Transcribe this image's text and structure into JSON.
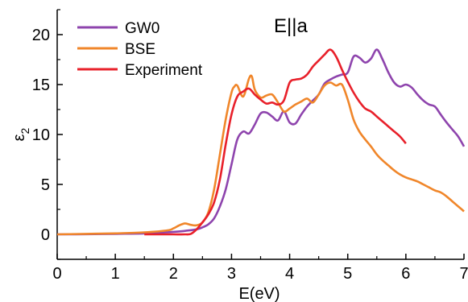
{
  "chart_data": {
    "type": "line",
    "title": "E||a",
    "xlabel": "E(eV)",
    "ylabel": "ε2",
    "ylabel_main": "ε",
    "ylabel_sub": "2",
    "xlim": [
      0,
      7
    ],
    "ylim": [
      -2.5,
      22.5
    ],
    "xticks": [
      0,
      1,
      2,
      3,
      4,
      5,
      6,
      7
    ],
    "yticks": [
      0,
      5,
      10,
      15,
      20
    ],
    "grid": false,
    "legend_position": "top-left",
    "series": [
      {
        "name": "GW0",
        "color": "#8e44ad",
        "x": [
          0,
          0.5,
          1,
          1.5,
          2,
          2.2,
          2.4,
          2.5,
          2.6,
          2.7,
          2.8,
          2.9,
          3.0,
          3.1,
          3.2,
          3.3,
          3.4,
          3.5,
          3.6,
          3.7,
          3.8,
          3.9,
          4.0,
          4.1,
          4.2,
          4.3,
          4.4,
          4.5,
          4.6,
          4.7,
          4.8,
          4.9,
          5.0,
          5.1,
          5.2,
          5.3,
          5.4,
          5.5,
          5.6,
          5.7,
          5.8,
          5.9,
          6.0,
          6.1,
          6.2,
          6.3,
          6.4,
          6.5,
          6.6,
          6.7,
          6.8,
          6.9,
          7.0
        ],
        "y": [
          0,
          0.02,
          0.05,
          0.1,
          0.25,
          0.35,
          0.5,
          0.7,
          1.0,
          1.6,
          2.8,
          4.5,
          7.0,
          9.5,
          10.3,
          10.1,
          11.0,
          12.1,
          12.2,
          11.8,
          11.4,
          12.3,
          11.2,
          11.1,
          12.0,
          12.8,
          13.4,
          14.0,
          15.1,
          15.5,
          15.8,
          16.0,
          16.2,
          17.8,
          17.7,
          17.2,
          17.6,
          18.5,
          17.5,
          16.2,
          15.2,
          14.8,
          15.0,
          14.7,
          14.0,
          13.4,
          13.0,
          12.8,
          12.0,
          11.2,
          10.5,
          9.8,
          8.8
        ]
      },
      {
        "name": "BSE",
        "color": "#f0862a",
        "x": [
          0,
          0.5,
          1,
          1.5,
          1.9,
          2.0,
          2.1,
          2.2,
          2.3,
          2.4,
          2.5,
          2.6,
          2.7,
          2.8,
          2.9,
          3.0,
          3.05,
          3.1,
          3.2,
          3.3,
          3.35,
          3.4,
          3.5,
          3.6,
          3.7,
          3.8,
          3.9,
          4.0,
          4.1,
          4.2,
          4.3,
          4.4,
          4.5,
          4.6,
          4.7,
          4.8,
          4.9,
          5.0,
          5.1,
          5.2,
          5.3,
          5.4,
          5.5,
          5.6,
          5.7,
          5.8,
          5.9,
          6.0,
          6.1,
          6.2,
          6.3,
          6.4,
          6.5,
          6.6,
          6.7,
          6.8,
          6.9,
          7.0
        ],
        "y": [
          0,
          0.05,
          0.1,
          0.2,
          0.4,
          0.6,
          0.9,
          1.1,
          0.95,
          0.9,
          1.2,
          2.2,
          4.5,
          8.0,
          11.5,
          14.2,
          14.8,
          14.9,
          13.8,
          15.6,
          15.8,
          14.5,
          13.7,
          13.9,
          14.0,
          13.2,
          12.3,
          12.6,
          13.0,
          13.3,
          13.6,
          13.2,
          14.0,
          14.9,
          15.2,
          14.9,
          15.0,
          13.5,
          11.5,
          10.3,
          9.5,
          8.8,
          8.0,
          7.4,
          6.9,
          6.4,
          6.0,
          5.7,
          5.5,
          5.3,
          5.0,
          4.7,
          4.4,
          4.2,
          3.8,
          3.3,
          2.8,
          2.3
        ]
      },
      {
        "name": "Experiment",
        "color": "#e8202a",
        "x": [
          1.5,
          1.8,
          2.0,
          2.2,
          2.3,
          2.4,
          2.5,
          2.6,
          2.7,
          2.8,
          2.9,
          3.0,
          3.1,
          3.2,
          3.3,
          3.4,
          3.5,
          3.6,
          3.7,
          3.8,
          3.9,
          4.0,
          4.1,
          4.2,
          4.3,
          4.4,
          4.5,
          4.6,
          4.7,
          4.8,
          4.9,
          5.0,
          5.1,
          5.2,
          5.3,
          5.4,
          5.5,
          5.6,
          5.7,
          5.8,
          5.9,
          6.0
        ],
        "y": [
          0.0,
          0.0,
          0.0,
          0.0,
          0.05,
          0.5,
          1.2,
          2.0,
          3.2,
          5.5,
          9.0,
          12.0,
          13.8,
          14.3,
          14.6,
          14.0,
          13.5,
          13.1,
          13.2,
          13.0,
          13.4,
          15.2,
          15.5,
          15.6,
          16.0,
          16.8,
          17.4,
          18.0,
          18.5,
          17.8,
          16.5,
          15.3,
          14.2,
          13.3,
          12.6,
          12.3,
          11.8,
          11.3,
          10.8,
          10.3,
          9.8,
          9.1
        ]
      }
    ]
  }
}
